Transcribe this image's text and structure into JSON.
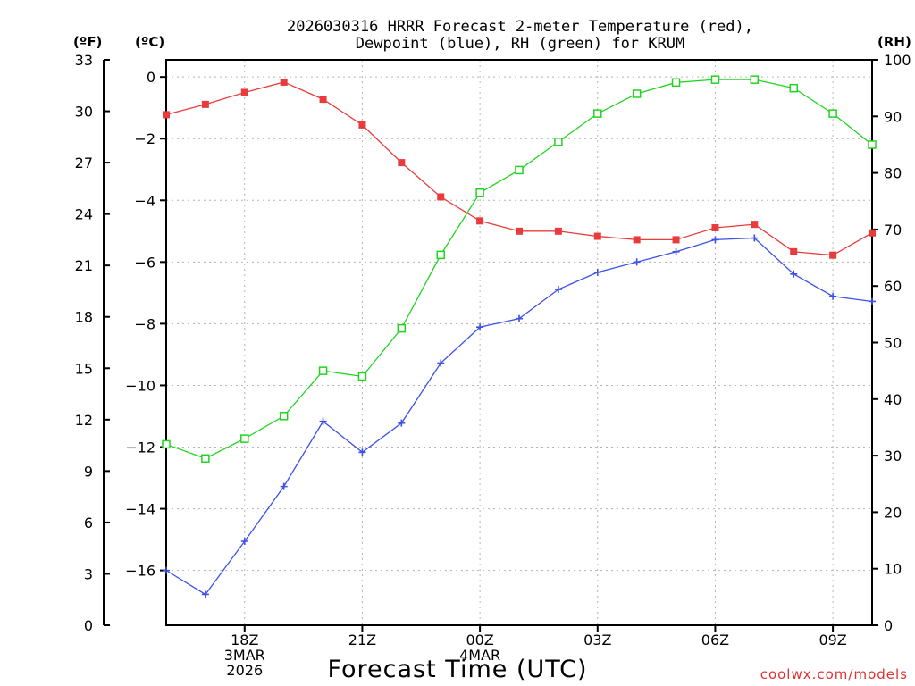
{
  "chart_data": {
    "type": "line",
    "title_line1": "2026030316 HRRR Forecast 2-meter Temperature (red),",
    "title_line2": "Dewpoint (blue), RH (green) for KRUM",
    "xlabel": "Forecast Time (UTC)",
    "credit": "coolwx.com/models",
    "left_f_unit": "(ºF)",
    "left_c_unit": "(ºC)",
    "right_unit": "(RH)",
    "x_hours": [
      16,
      17,
      18,
      19,
      20,
      21,
      22,
      23,
      24,
      25,
      26,
      27,
      28,
      29,
      30,
      31,
      32,
      33,
      34
    ],
    "x_ticks": [
      {
        "hour": 18,
        "lines": [
          "18Z",
          "3MAR",
          "2026"
        ]
      },
      {
        "hour": 21,
        "lines": [
          "21Z"
        ]
      },
      {
        "hour": 24,
        "lines": [
          "00Z",
          "4MAR"
        ]
      },
      {
        "hour": 27,
        "lines": [
          "03Z"
        ]
      },
      {
        "hour": 30,
        "lines": [
          "06Z"
        ]
      },
      {
        "hour": 33,
        "lines": [
          "09Z"
        ]
      }
    ],
    "xlim": [
      16,
      34
    ],
    "f_axis": {
      "ticks": [
        0,
        3,
        6,
        9,
        12,
        15,
        18,
        21,
        24,
        27,
        30,
        33
      ],
      "lim": [
        0,
        33
      ]
    },
    "c_axis": {
      "ticks": [
        0,
        -2,
        -4,
        -6,
        -8,
        -10,
        -12,
        -14,
        -16
      ]
    },
    "rh_axis": {
      "ticks": [
        0,
        10,
        20,
        30,
        40,
        50,
        60,
        70,
        80,
        90,
        100
      ],
      "lim": [
        0,
        100
      ]
    },
    "series": [
      {
        "name": "Temperature",
        "units": "F",
        "color": "#e83c3c",
        "marker": "filled-square",
        "values": [
          29.8,
          30.4,
          31.1,
          31.7,
          30.7,
          29.2,
          27.0,
          25.0,
          23.6,
          23.0,
          23.0,
          22.7,
          22.5,
          22.5,
          23.2,
          23.4,
          21.8,
          21.6,
          22.9
        ]
      },
      {
        "name": "Dewpoint",
        "units": "F",
        "color": "#3c50e8",
        "marker": "plus",
        "values": [
          3.2,
          1.8,
          4.9,
          8.1,
          11.9,
          10.1,
          11.8,
          15.3,
          17.4,
          17.9,
          19.6,
          20.6,
          21.2,
          21.8,
          22.5,
          22.6,
          20.5,
          19.2,
          18.9
        ]
      },
      {
        "name": "RH",
        "units": "%",
        "color": "#22d422",
        "marker": "open-square",
        "values": [
          32.0,
          29.5,
          33.0,
          37.0,
          45.0,
          44.0,
          52.5,
          65.5,
          76.5,
          80.5,
          85.5,
          90.5,
          94.0,
          96.0,
          96.5,
          96.5,
          95.0,
          90.5,
          85.0
        ]
      }
    ]
  }
}
